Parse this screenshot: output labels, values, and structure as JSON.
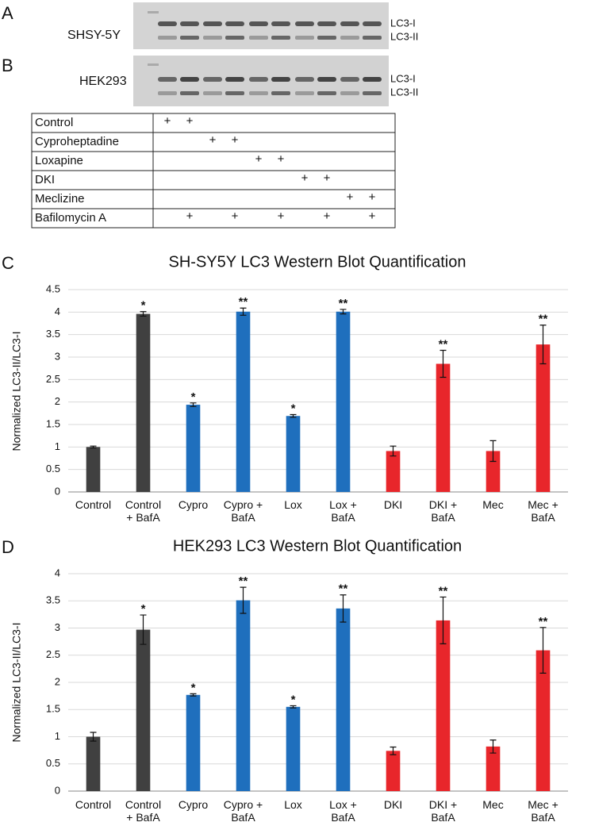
{
  "panel_labels": [
    "A",
    "B",
    "C",
    "D"
  ],
  "blots": [
    {
      "cell_line": "SHSY-5Y",
      "bands": [
        "LC3-I",
        "LC3-II"
      ]
    },
    {
      "cell_line": "HEK293",
      "bands": [
        "LC3-I",
        "LC3-II"
      ]
    }
  ],
  "table": {
    "rows": [
      {
        "label": "Control",
        "cells": [
          "+",
          "+",
          null,
          null,
          null,
          null,
          null,
          null,
          null,
          null
        ]
      },
      {
        "label": "Cyproheptadine",
        "cells": [
          null,
          null,
          "+",
          "+",
          null,
          null,
          null,
          null,
          null,
          null
        ]
      },
      {
        "label": "Loxapine",
        "cells": [
          null,
          null,
          null,
          null,
          "+",
          "+",
          null,
          null,
          null,
          null
        ]
      },
      {
        "label": "DKI",
        "cells": [
          null,
          null,
          null,
          null,
          null,
          null,
          "+",
          "+",
          null,
          null
        ]
      },
      {
        "label": "Meclizine",
        "cells": [
          null,
          null,
          null,
          null,
          null,
          null,
          null,
          null,
          "+",
          "+"
        ]
      },
      {
        "label": "Bafilomycin A",
        "cells": [
          null,
          "+",
          null,
          "+",
          null,
          "+",
          null,
          "+",
          null,
          "+"
        ]
      }
    ]
  },
  "chart_data": [
    {
      "type": "bar",
      "title": "SH-SY5Y LC3 Western Blot Quantification",
      "y_label": "Normalized LC3-II/LC3-I",
      "categories": [
        "Control",
        "Control\n+ BafA",
        "Cypro",
        "Cypro +\nBafA",
        "Lox",
        "Lox +\nBafA",
        "DKI",
        "DKI +\nBafA",
        "Mec",
        "Mec +\nBafA"
      ],
      "values": [
        1.0,
        3.96,
        1.94,
        4.01,
        1.69,
        4.01,
        0.91,
        2.85,
        0.91,
        3.28
      ],
      "errors": [
        0.02,
        0.05,
        0.04,
        0.08,
        0.03,
        0.05,
        0.11,
        0.3,
        0.23,
        0.43
      ],
      "colors": [
        "#404040",
        "#404040",
        "#1f6fbd",
        "#1f6fbd",
        "#1f6fbd",
        "#1f6fbd",
        "#e8262b",
        "#e8262b",
        "#e8262b",
        "#e8262b"
      ],
      "significance": [
        null,
        "*",
        "*",
        "**",
        "*",
        "**",
        null,
        "**",
        null,
        "**"
      ],
      "ylim": [
        0,
        4.5
      ],
      "yticks": [
        0,
        0.5,
        1,
        1.5,
        2,
        2.5,
        3,
        3.5,
        4,
        4.5
      ],
      "grid": true
    },
    {
      "type": "bar",
      "title": "HEK293 LC3 Western Blot Quantification",
      "y_label": "Normalized LC3-II/LC3-I",
      "categories": [
        "Control",
        "Control\n+ BafA",
        "Cypro",
        "Cypro +\nBafA",
        "Lox",
        "Lox +\nBafA",
        "DKI",
        "DKI +\nBafA",
        "Mec",
        "Mec +\nBafA"
      ],
      "values": [
        1.0,
        2.97,
        1.77,
        3.51,
        1.55,
        3.36,
        0.74,
        3.14,
        0.82,
        2.59
      ],
      "errors": [
        0.08,
        0.27,
        0.02,
        0.24,
        0.02,
        0.25,
        0.07,
        0.43,
        0.12,
        0.42
      ],
      "colors": [
        "#404040",
        "#404040",
        "#1f6fbd",
        "#1f6fbd",
        "#1f6fbd",
        "#1f6fbd",
        "#e8262b",
        "#e8262b",
        "#e8262b",
        "#e8262b"
      ],
      "significance": [
        null,
        "*",
        "*",
        "**",
        "*",
        "**",
        null,
        "**",
        null,
        "**"
      ],
      "ylim": [
        0,
        4
      ],
      "yticks": [
        0,
        0.5,
        1,
        1.5,
        2,
        2.5,
        3,
        3.5,
        4
      ],
      "grid": true
    }
  ]
}
